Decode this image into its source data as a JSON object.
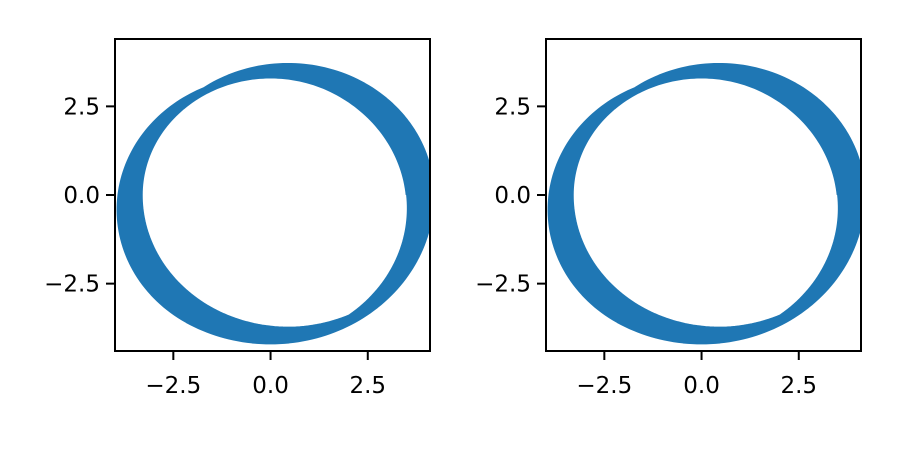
{
  "chart_data": [
    {
      "type": "line",
      "title": "",
      "xlabel": "",
      "ylabel": "",
      "xlim": [
        -4.0,
        4.1
      ],
      "ylim": [
        -4.4,
        4.4
      ],
      "xticks": [
        -2.5,
        0.0,
        2.5
      ],
      "yticks": [
        -2.5,
        0.0,
        2.5
      ],
      "xtick_labels": [
        "−2.5",
        "0.0",
        "2.5"
      ],
      "ytick_labels": [
        "−2.5",
        "0.0",
        "2.5"
      ],
      "grid": false,
      "legend": "none",
      "color": "#1f77b4",
      "series": [
        {
          "curve": "precessing-orbit",
          "inner_radius": 3.3,
          "outer_radius": 4.2,
          "turns": 60
        }
      ]
    },
    {
      "type": "line",
      "title": "",
      "xlabel": "",
      "ylabel": "",
      "xlim": [
        -4.0,
        4.1
      ],
      "ylim": [
        -4.4,
        4.4
      ],
      "xticks": [
        -2.5,
        0.0,
        2.5
      ],
      "yticks": [
        -2.5,
        0.0,
        2.5
      ],
      "xtick_labels": [
        "−2.5",
        "0.0",
        "2.5"
      ],
      "ytick_labels": [
        "−2.5",
        "0.0",
        "2.5"
      ],
      "grid": false,
      "legend": "none",
      "color": "#1f77b4",
      "series": [
        {
          "curve": "precessing-orbit",
          "inner_radius": 3.3,
          "outer_radius": 4.2,
          "turns": 60
        }
      ]
    }
  ]
}
